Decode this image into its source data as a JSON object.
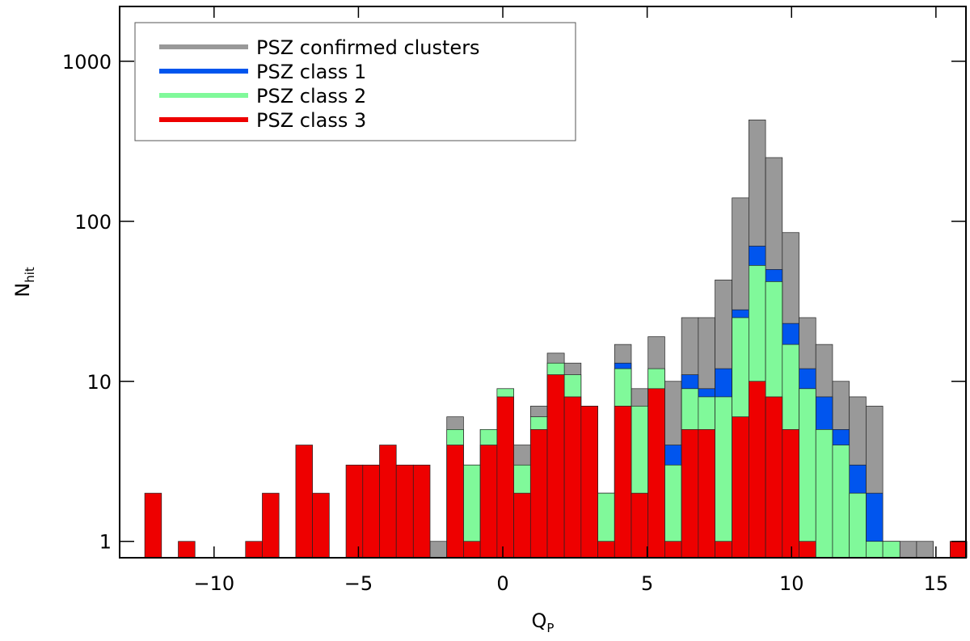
{
  "chart_data": {
    "type": "histogram",
    "log_y": true,
    "legend_position": "upper left",
    "xlabel": "Q",
    "xlabel_sub": "P",
    "ylabel": "N",
    "ylabel_sub": "hit",
    "bins": [
      -12.4,
      -11.82,
      -11.24,
      -10.66,
      -10.08,
      -9.5,
      -8.91,
      -8.33,
      -7.75,
      -7.17,
      -6.59,
      -6.01,
      -5.43,
      -4.85,
      -4.27,
      -3.69,
      -3.1,
      -2.52,
      -1.94,
      -1.36,
      -0.78,
      -0.2,
      0.38,
      0.96,
      1.54,
      2.13,
      2.71,
      3.29,
      3.87,
      4.45,
      5.03,
      5.61,
      6.19,
      6.77,
      7.35,
      7.94,
      8.52,
      9.1,
      9.68,
      10.26,
      10.84,
      11.42,
      12.0,
      12.58,
      13.16,
      13.75,
      14.33,
      14.91,
      15.49,
      16.07
    ],
    "series": [
      {
        "name": "PSZ confirmed clusters",
        "color": "#999999",
        "values": [
          0,
          0,
          0,
          0,
          0,
          0,
          0,
          0,
          0,
          0,
          0,
          0,
          0,
          0,
          0,
          0,
          0,
          1,
          6,
          3,
          5,
          9,
          4,
          7,
          15,
          13,
          7,
          2,
          17,
          9,
          19,
          10,
          25,
          25,
          43,
          140,
          430,
          250,
          85,
          25,
          17,
          10,
          8,
          7,
          1,
          1,
          1,
          0,
          1
        ]
      },
      {
        "name": "PSZ class 1",
        "color": "#0055ee",
        "values": [
          0,
          0,
          0,
          0,
          0,
          0,
          0,
          0,
          0,
          0,
          0,
          0,
          0,
          0,
          0,
          0,
          0,
          0,
          0,
          0,
          0,
          0,
          0,
          0,
          0,
          0,
          0,
          0,
          13,
          0,
          0,
          4,
          11,
          9,
          12,
          28,
          70,
          50,
          23,
          12,
          8,
          5,
          3,
          2,
          1,
          0,
          0,
          0,
          0
        ]
      },
      {
        "name": "PSZ class 2",
        "color": "#80f99a",
        "values": [
          0,
          0,
          0,
          0,
          0,
          0,
          0,
          0,
          0,
          0,
          0,
          0,
          0,
          0,
          0,
          0,
          0,
          0,
          5,
          3,
          5,
          9,
          3,
          6,
          13,
          11,
          7,
          2,
          12,
          7,
          12,
          3,
          9,
          8,
          8,
          25,
          53,
          42,
          17,
          9,
          5,
          4,
          2,
          1,
          1,
          0,
          0,
          0,
          0
        ]
      },
      {
        "name": "PSZ class 3",
        "color": "#ee0000",
        "values": [
          2,
          0,
          1,
          0,
          0,
          0,
          1,
          2,
          0,
          4,
          2,
          0,
          3,
          3,
          4,
          3,
          3,
          0,
          4,
          1,
          4,
          8,
          2,
          5,
          11,
          8,
          7,
          1,
          7,
          2,
          9,
          1,
          5,
          5,
          1,
          6,
          10,
          8,
          5,
          1,
          0,
          0,
          0,
          0,
          0,
          0,
          0,
          0,
          1
        ]
      }
    ],
    "xlim": [
      -13.27,
      16.04
    ],
    "xticks": [
      {
        "value": -10,
        "label": "−10"
      },
      {
        "value": -5,
        "label": "−5"
      },
      0,
      5,
      10,
      15
    ],
    "ylim": [
      0.79,
      2200
    ],
    "yticks": [
      1,
      10,
      100,
      1000
    ]
  }
}
